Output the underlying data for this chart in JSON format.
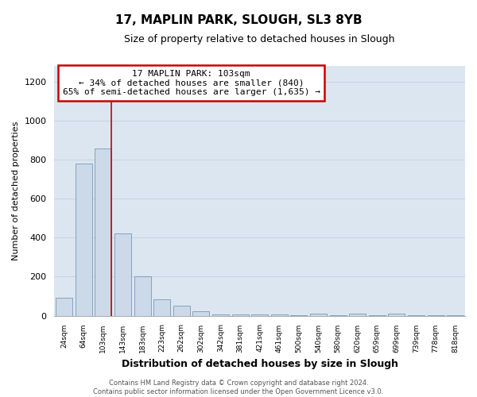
{
  "title": "17, MAPLIN PARK, SLOUGH, SL3 8YB",
  "subtitle": "Size of property relative to detached houses in Slough",
  "xlabel": "Distribution of detached houses by size in Slough",
  "ylabel": "Number of detached properties",
  "footer_line1": "Contains HM Land Registry data © Crown copyright and database right 2024.",
  "footer_line2": "Contains public sector information licensed under the Open Government Licence v3.0.",
  "bin_labels": [
    "24sqm",
    "64sqm",
    "103sqm",
    "143sqm",
    "183sqm",
    "223sqm",
    "262sqm",
    "302sqm",
    "342sqm",
    "381sqm",
    "421sqm",
    "461sqm",
    "500sqm",
    "540sqm",
    "580sqm",
    "620sqm",
    "659sqm",
    "699sqm",
    "739sqm",
    "778sqm",
    "818sqm"
  ],
  "bar_values": [
    90,
    780,
    855,
    420,
    200,
    85,
    52,
    22,
    8,
    5,
    5,
    5,
    2,
    12,
    2,
    12,
    2,
    12,
    2,
    2,
    2
  ],
  "bar_color": "#ccd9e8",
  "bar_edge_color": "#7799bb",
  "red_line_bin_index": 2,
  "annotation_title": "17 MAPLIN PARK: 103sqm",
  "annotation_line1": "← 34% of detached houses are smaller (840)",
  "annotation_line2": "65% of semi-detached houses are larger (1,635) →",
  "annotation_box_facecolor": "#ffffff",
  "annotation_box_edgecolor": "#cc0000",
  "ylim": [
    0,
    1280
  ],
  "yticks": [
    0,
    200,
    400,
    600,
    800,
    1000,
    1200
  ],
  "grid_color": "#c8d4e4",
  "plot_bg_color": "#dce6f0",
  "fig_bg_color": "#ffffff",
  "title_fontsize": 11,
  "subtitle_fontsize": 9,
  "ylabel_fontsize": 8,
  "xlabel_fontsize": 9,
  "footer_fontsize": 6
}
